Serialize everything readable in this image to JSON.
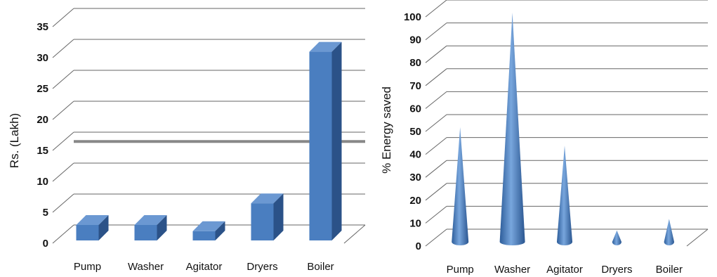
{
  "chart_data": [
    {
      "type": "bar",
      "categories": [
        "Pump",
        "Washer",
        "Agitator",
        "Dryers",
        "Boiler"
      ],
      "values": [
        2.5,
        2.5,
        1.5,
        6,
        30.5
      ],
      "title": "",
      "xlabel": "",
      "ylabel": "Rs. (Lakh)",
      "ylim": [
        0,
        35
      ],
      "yticks": [
        "0",
        "5",
        "10",
        "15",
        "20",
        "25",
        "30",
        "35"
      ],
      "grid": true,
      "color": "#4a7ec0"
    },
    {
      "type": "bar",
      "categories": [
        "Pump",
        "Washer",
        "Agitator",
        "Dryers",
        "Boiler"
      ],
      "values": [
        50,
        100,
        42,
        5,
        10
      ],
      "title": "",
      "xlabel": "",
      "ylabel": "% Energy saved",
      "ylim": [
        0,
        100
      ],
      "yticks": [
        "0",
        "10",
        "20",
        "30",
        "40",
        "50",
        "60",
        "70",
        "80",
        "90",
        "100"
      ],
      "grid": true,
      "color": "#4a7ec0"
    }
  ]
}
